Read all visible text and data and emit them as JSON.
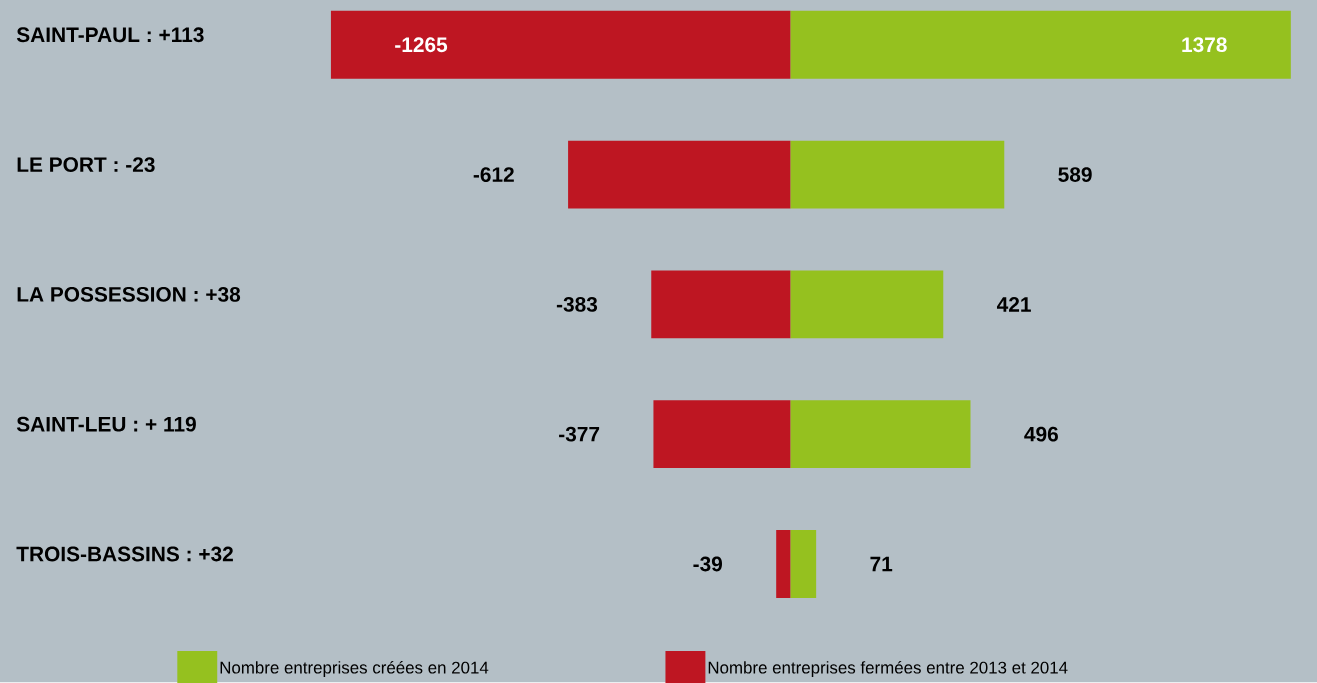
{
  "chart_data": {
    "type": "bar",
    "orientation": "horizontal",
    "stacked": true,
    "data_labels": true,
    "legend": "bottom",
    "categories": [
      "SAINT-PAUL : +113",
      "LE PORT : -23",
      "LA POSSESSION : +38",
      "SAINT-LEU : + 119",
      "TROIS-BASSINS : +32"
    ],
    "series": [
      {
        "name": "Nombre entreprises créées en 2014",
        "color": "#95c11f",
        "values": [
          1378,
          589,
          421,
          496,
          71
        ]
      },
      {
        "name": "Nombre entreprises fermées entre 2013 et 2014",
        "color": "#be1622",
        "values": [
          -1265,
          -612,
          -383,
          -377,
          -39
        ]
      }
    ]
  }
}
